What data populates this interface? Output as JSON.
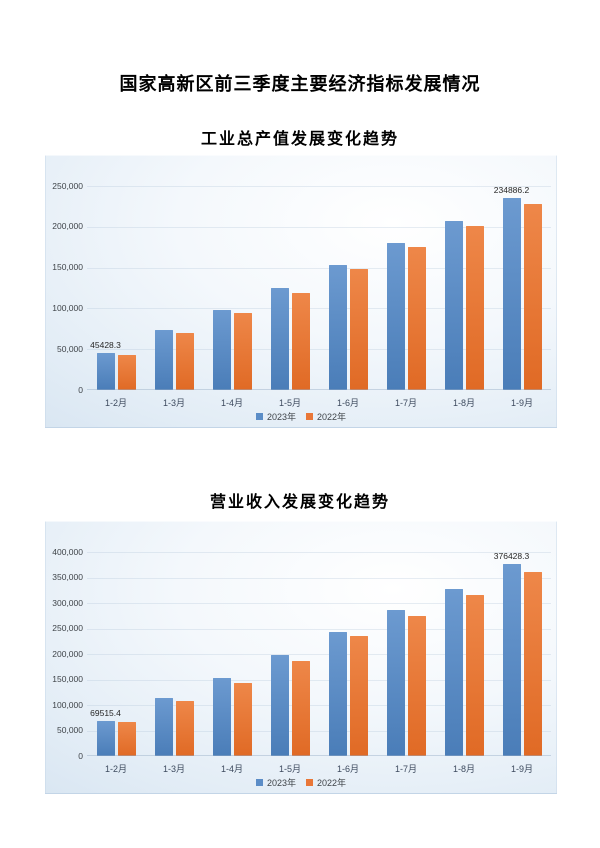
{
  "page": {
    "main_title": "国家高新区前三季度主要经济指标发展情况"
  },
  "colors": {
    "series_2023": "#5b8dc7",
    "series_2023_light": "#6c9ad0",
    "series_2023_dark": "#4a7db8",
    "series_2022": "#e97738",
    "series_2022_light": "#ee8749",
    "series_2022_dark": "#e06a25",
    "panel_bg_edge": "#ccdded",
    "panel_bg_center": "#ffffff",
    "axis_text": "#3f4449"
  },
  "chart_data": [
    {
      "type": "bar",
      "title": "工业总产值发展变化趋势",
      "categories": [
        "1-2月",
        "1-3月",
        "1-4月",
        "1-5月",
        "1-6月",
        "1-7月",
        "1-8月",
        "1-9月"
      ],
      "series": [
        {
          "name": "2023年",
          "color": "#5b8dc7",
          "values": [
            45428.3,
            73200,
            98000,
            124600,
            153500,
            180200,
            206700,
            234886.2
          ]
        },
        {
          "name": "2022年",
          "color": "#e97738",
          "values": [
            43500,
            70000,
            94000,
            119300,
            147900,
            174800,
            201500,
            228500
          ]
        }
      ],
      "xlabel": "",
      "ylabel": "",
      "ylim": [
        0,
        250000
      ],
      "y_tick_step": 50000,
      "y_tick_labels": [
        "0",
        "50,000",
        "100,000",
        "150,000",
        "200,000",
        "250,000"
      ],
      "annotations": [
        {
          "series": 0,
          "index": 0,
          "label": "45428.3"
        },
        {
          "series": 0,
          "index": 7,
          "label": "234886.2"
        }
      ],
      "grid": true,
      "legend_position": "bottom"
    },
    {
      "type": "bar",
      "title": "营业收入发展变化趋势",
      "categories": [
        "1-2月",
        "1-3月",
        "1-4月",
        "1-5月",
        "1-6月",
        "1-7月",
        "1-8月",
        "1-9月"
      ],
      "series": [
        {
          "name": "2023年",
          "color": "#5b8dc7",
          "values": [
            69515.4,
            114500,
            153000,
            197300,
            243500,
            286500,
            327000,
            376428.3
          ]
        },
        {
          "name": "2022年",
          "color": "#e97738",
          "values": [
            67500,
            108000,
            144000,
            186000,
            235000,
            274500,
            315000,
            361000
          ]
        }
      ],
      "xlabel": "",
      "ylabel": "",
      "ylim": [
        0,
        400000
      ],
      "y_tick_step": 50000,
      "y_tick_labels": [
        "0",
        "50,000",
        "100,000",
        "150,000",
        "200,000",
        "250,000",
        "300,000",
        "350,000",
        "400,000"
      ],
      "annotations": [
        {
          "series": 0,
          "index": 0,
          "label": "69515.4"
        },
        {
          "series": 0,
          "index": 7,
          "label": "376428.3"
        }
      ],
      "grid": true,
      "legend_position": "bottom"
    }
  ]
}
